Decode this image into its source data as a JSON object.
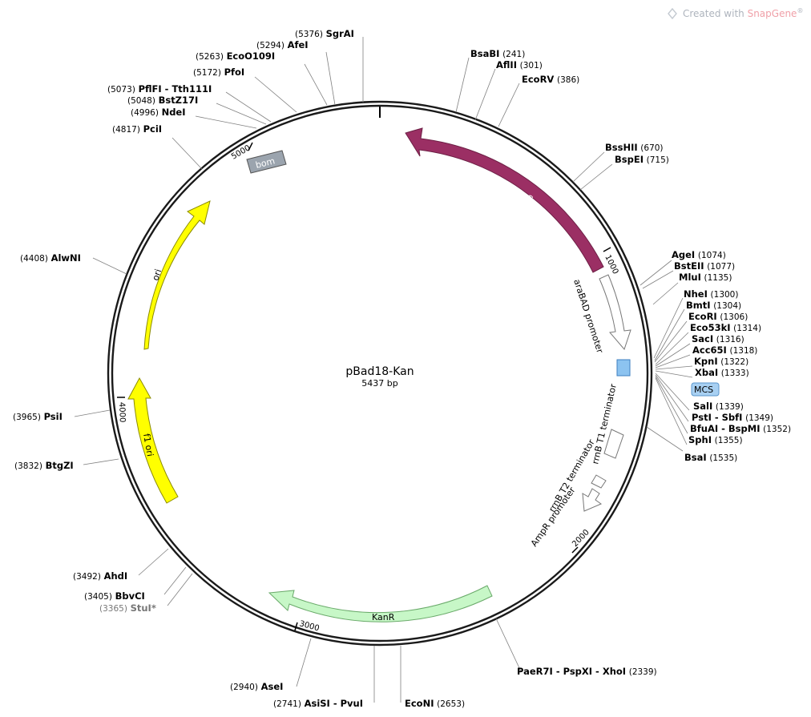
{
  "watermark": {
    "prefix": "Created with ",
    "brand": "SnapGene",
    "mark": "®"
  },
  "plasmid": {
    "name": "pBad18-Kan",
    "size_label": "5437 bp",
    "length": 5437
  },
  "ticks": [
    {
      "pos": 1000,
      "label": "1000"
    },
    {
      "pos": 2000,
      "label": "2000"
    },
    {
      "pos": 3000,
      "label": "3000"
    },
    {
      "pos": 4000,
      "label": "4000"
    },
    {
      "pos": 5000,
      "label": "5000"
    }
  ],
  "features": [
    {
      "id": "araC",
      "label": "araC",
      "type": "arrow",
      "start": 1200,
      "end": 330,
      "color": "#9b2f64",
      "text_color": "#ffffff"
    },
    {
      "id": "araBAD",
      "label": "araBAD promoter",
      "type": "arrow",
      "start": 1010,
      "end": 1285,
      "color": "#ffffff"
    },
    {
      "id": "mcs",
      "label": "MCS",
      "type": "box",
      "start": 1300,
      "end": 1360,
      "color": "#8cc3f0"
    },
    {
      "id": "rrnbT1",
      "label": "rrnB T1 terminator",
      "type": "box",
      "start": 1600,
      "end": 1680,
      "color": "#ffffff"
    },
    {
      "id": "rrnbT2",
      "label": "rrnB T2 terminator",
      "type": "box",
      "start": 1800,
      "end": 1830,
      "color": "#ffffff"
    },
    {
      "id": "ampR",
      "label": "AmpR promoter",
      "type": "arrow",
      "start": 1835,
      "end": 1900,
      "color": "#ffffff"
    },
    {
      "id": "kanR",
      "label": "KanR",
      "type": "arrow",
      "start": 2580,
      "end": 3340,
      "color": "#c7f7c7",
      "text_color": "#000000"
    },
    {
      "id": "f1ori",
      "label": "f1 ori",
      "type": "arrow",
      "start": 3760,
      "end": 4180,
      "color": "#ffff00",
      "text_color": "#000000"
    },
    {
      "id": "ori",
      "label": "ori",
      "type": "arrow",
      "start": 4310,
      "end": 4900,
      "color": "#ffff00",
      "text_color": "#000000"
    },
    {
      "id": "bom",
      "label": "bom",
      "type": "box",
      "start": 5010,
      "end": 5120,
      "color": "#9ba4ae",
      "text_color": "#ffffff"
    }
  ],
  "sites": [
    {
      "name": "SgrAI",
      "pos": "(5376)"
    },
    {
      "name": "AfeI",
      "pos": "(5294)"
    },
    {
      "name": "EcoO109I",
      "pos": "(5263)"
    },
    {
      "name": "PfoI",
      "pos": "(5172)"
    },
    {
      "name": "PflFI - Tth111I",
      "pos": "(5073)"
    },
    {
      "name": "BstZ17I",
      "pos": "(5048)"
    },
    {
      "name": "NdeI",
      "pos": "(4996)"
    },
    {
      "name": "PciI",
      "pos": "(4817)"
    },
    {
      "name": "AlwNI",
      "pos": "(4408)"
    },
    {
      "name": "PsiI",
      "pos": "(3965)"
    },
    {
      "name": "BtgZI",
      "pos": "(3832)"
    },
    {
      "name": "AhdI",
      "pos": "(3492)"
    },
    {
      "name": "BbvCI",
      "pos": "(3405)"
    },
    {
      "name": "StuI*",
      "pos": "(3365)"
    },
    {
      "name": "AseI",
      "pos": "(2940)"
    },
    {
      "name": "AsiSI - PvuI",
      "pos": "(2741)"
    },
    {
      "name": "EcoNI",
      "pos": "(2653)"
    },
    {
      "name": "PaeR7I - PspXI - XhoI",
      "pos": "(2339)"
    },
    {
      "name": "BsaBI",
      "pos": "(241)"
    },
    {
      "name": "AflII",
      "pos": "(301)"
    },
    {
      "name": "EcoRV",
      "pos": "(386)"
    },
    {
      "name": "BssHII",
      "pos": "(670)"
    },
    {
      "name": "BspEI",
      "pos": "(715)"
    },
    {
      "name": "AgeI",
      "pos": "(1074)"
    },
    {
      "name": "BstEII",
      "pos": "(1077)"
    },
    {
      "name": "MluI",
      "pos": "(1135)"
    },
    {
      "name": "NheI",
      "pos": "(1300)"
    },
    {
      "name": "BmtI",
      "pos": "(1304)"
    },
    {
      "name": "EcoRI",
      "pos": "(1306)"
    },
    {
      "name": "Eco53kI",
      "pos": "(1314)"
    },
    {
      "name": "SacI",
      "pos": "(1316)"
    },
    {
      "name": "Acc65I",
      "pos": "(1318)"
    },
    {
      "name": "KpnI",
      "pos": "(1322)"
    },
    {
      "name": "XbaI",
      "pos": "(1333)"
    },
    {
      "name": "SalI",
      "pos": "(1339)"
    },
    {
      "name": "PstI - SbfI",
      "pos": "(1349)"
    },
    {
      "name": "BfuAI - BspMI",
      "pos": "(1352)"
    },
    {
      "name": "SphI",
      "pos": "(1355)"
    },
    {
      "name": "BsaI",
      "pos": "(1535)"
    }
  ]
}
